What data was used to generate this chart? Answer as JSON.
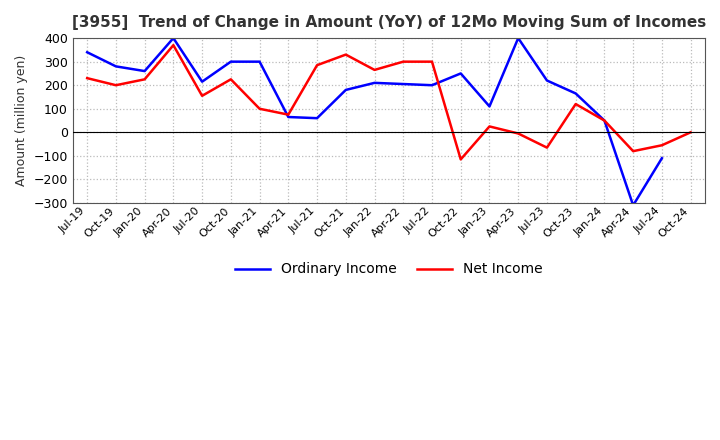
{
  "title": "[3955]  Trend of Change in Amount (YoY) of 12Mo Moving Sum of Incomes",
  "ylabel": "Amount (million yen)",
  "x_labels": [
    "Jul-19",
    "Oct-19",
    "Jan-20",
    "Apr-20",
    "Jul-20",
    "Oct-20",
    "Jan-21",
    "Apr-21",
    "Jul-21",
    "Oct-21",
    "Jan-22",
    "Apr-22",
    "Jul-22",
    "Oct-22",
    "Jan-23",
    "Apr-23",
    "Jul-23",
    "Oct-23",
    "Jan-24",
    "Apr-24",
    "Jul-24",
    "Oct-24"
  ],
  "ordinary_income": [
    340,
    280,
    260,
    400,
    215,
    300,
    300,
    65,
    60,
    180,
    210,
    205,
    200,
    250,
    110,
    400,
    220,
    165,
    50,
    -310,
    -110,
    null
  ],
  "net_income": [
    230,
    200,
    225,
    370,
    155,
    225,
    100,
    75,
    285,
    330,
    265,
    300,
    300,
    -115,
    25,
    -5,
    -65,
    120,
    50,
    -80,
    -55,
    0
  ],
  "ordinary_color": "#0000FF",
  "net_color": "#FF0000",
  "ylim": [
    -300,
    400
  ],
  "yticks": [
    -300,
    -200,
    -100,
    0,
    100,
    200,
    300,
    400
  ],
  "bg_color": "#FFFFFF",
  "grid_color": "#BBBBBB",
  "legend_labels": [
    "Ordinary Income",
    "Net Income"
  ],
  "title_color": "#333333"
}
